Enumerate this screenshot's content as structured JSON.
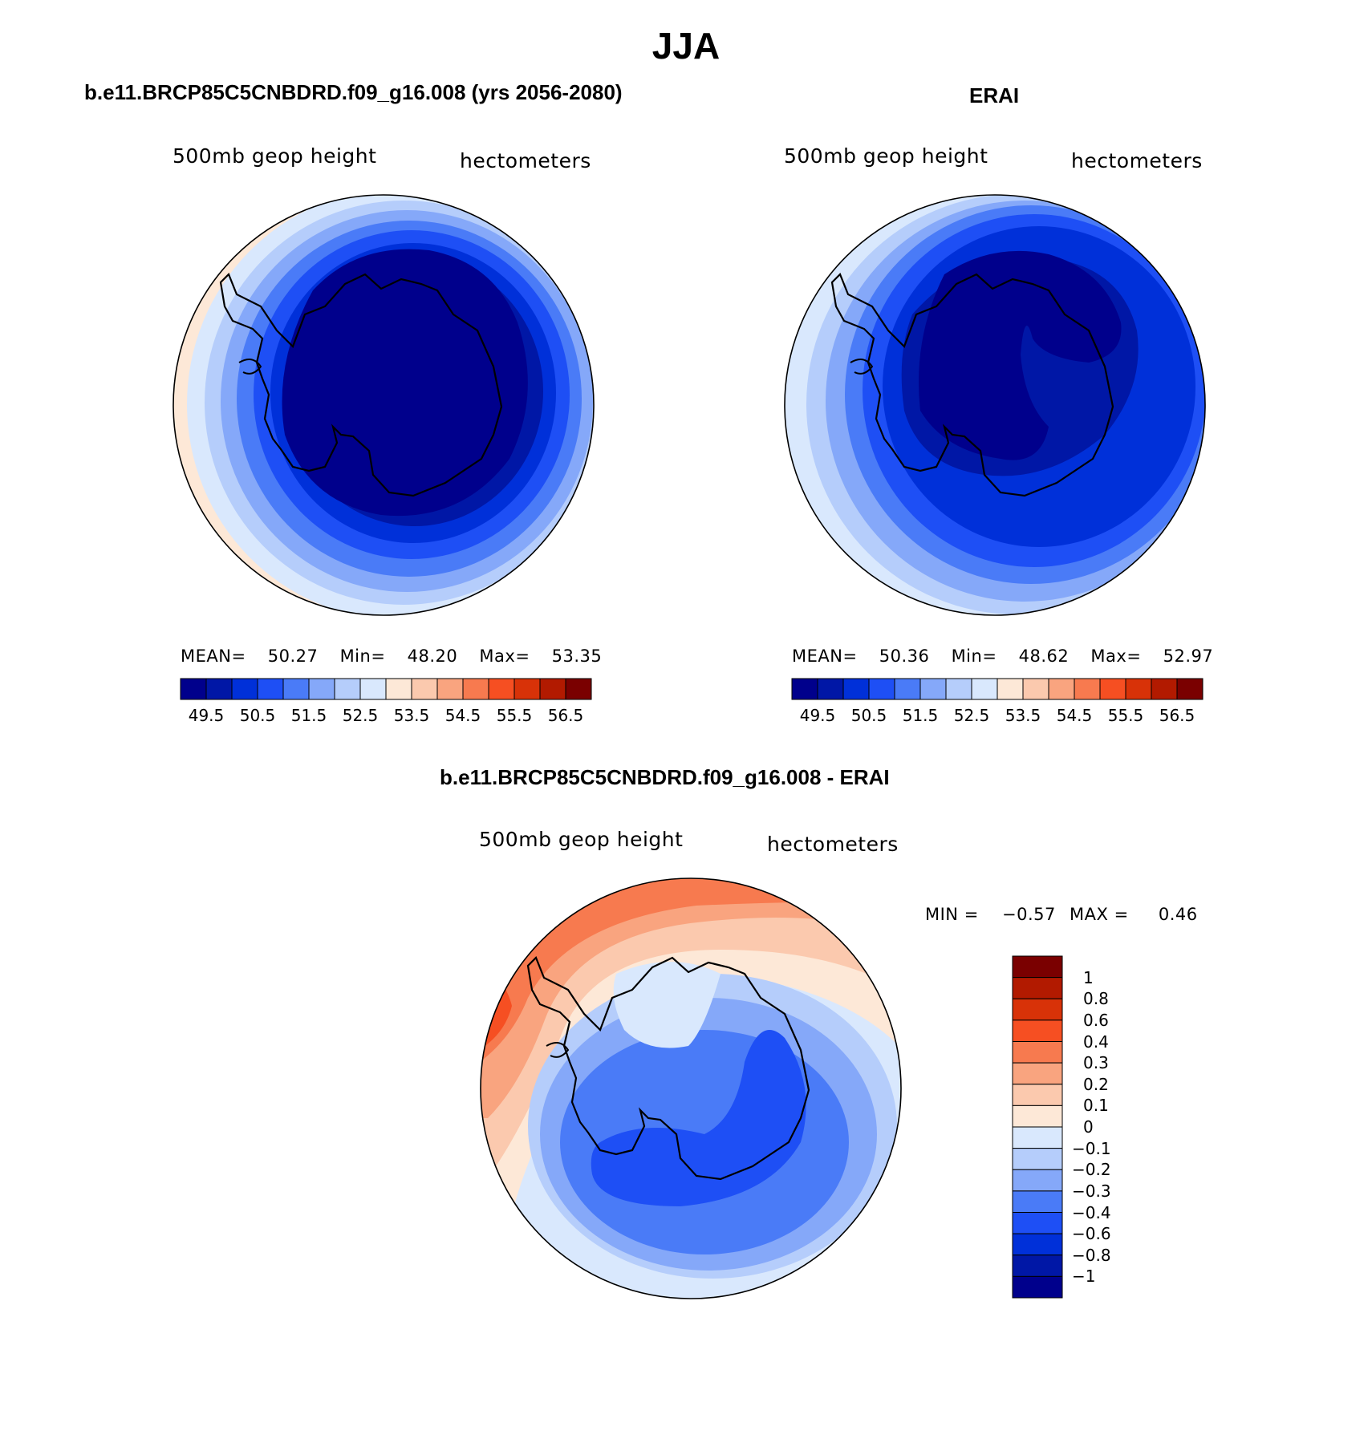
{
  "title": "JJA",
  "panels": [
    {
      "id": "model",
      "title": "b.e11.BRCP85C5CNBDRD.f09_g16.008 (yrs 2056-2080)",
      "left_label": "500mb geop height",
      "right_label": "hectometers",
      "stats": {
        "mean_label": "MEAN=",
        "mean": "50.27",
        "min_label": "Min=",
        "min": "48.20",
        "max_label": "Max=",
        "max": "53.35"
      },
      "colorbar_ticks": [
        "49.5",
        "50.5",
        "51.5",
        "52.5",
        "53.5",
        "54.5",
        "55.5",
        "56.5"
      ]
    },
    {
      "id": "obs",
      "title": "ERAI",
      "left_label": "500mb geop height",
      "right_label": "hectometers",
      "stats": {
        "mean_label": "MEAN=",
        "mean": "50.36",
        "min_label": "Min=",
        "min": "48.62",
        "max_label": "Max=",
        "max": "52.97"
      },
      "colorbar_ticks": [
        "49.5",
        "50.5",
        "51.5",
        "52.5",
        "53.5",
        "54.5",
        "55.5",
        "56.5"
      ]
    },
    {
      "id": "diff",
      "title": "b.e11.BRCP85C5CNBDRD.f09_g16.008 - ERAI",
      "left_label": "500mb geop height",
      "right_label": "hectometers",
      "stats": {
        "min_label": "MIN =",
        "min": "−0.57",
        "max_label": "MAX =",
        "max": "0.46"
      },
      "colorbar_ticks": [
        "1",
        "0.8",
        "0.6",
        "0.4",
        "0.3",
        "0.2",
        "0.1",
        "0",
        "−0.1",
        "−0.2",
        "−0.3",
        "−0.4",
        "−0.6",
        "−0.8",
        "−1"
      ]
    }
  ],
  "colors": {
    "abs_scale": [
      "#00008c",
      "#0017a6",
      "#0030d9",
      "#1e4ff5",
      "#4a7bf7",
      "#85a8f9",
      "#b5cdfb",
      "#d9e8fd",
      "#fde8d7",
      "#fbc9ae",
      "#f9a47f",
      "#f77a4f",
      "#f64f22",
      "#d83208",
      "#b21a00",
      "#7a0000"
    ],
    "diff_scale": [
      "#00008c",
      "#0017a6",
      "#0030d9",
      "#1e4ff5",
      "#4a7bf7",
      "#85a8f9",
      "#b5cdfb",
      "#d9e8fd",
      "#fde8d7",
      "#fbc9ae",
      "#f9a47f",
      "#f77a4f",
      "#f64f22",
      "#d83208",
      "#b21a00",
      "#7a0000"
    ]
  }
}
